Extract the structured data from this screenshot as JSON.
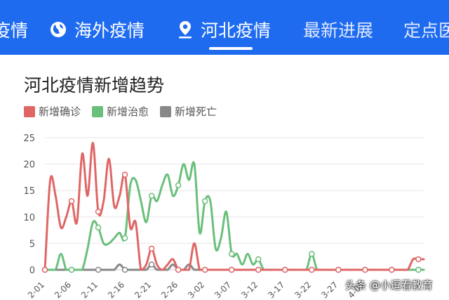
{
  "nav": {
    "tabs": [
      {
        "label": "疫情",
        "icon": "",
        "active": false
      },
      {
        "label": "海外疫情",
        "icon": "globe-icon",
        "active": false
      },
      {
        "label": "河北疫情",
        "icon": "location-pin-icon",
        "active": true
      },
      {
        "label": "最新进展",
        "icon": "",
        "active": false
      },
      {
        "label": "定点医",
        "icon": "",
        "active": false
      }
    ]
  },
  "colors": {
    "nav_bg": "#1e6bf0",
    "confirmed": "#e06666",
    "recovered": "#6abf7b",
    "deaths": "#888888"
  },
  "chart_data": {
    "type": "line",
    "title": "河北疫情新增趋势",
    "xlabel": "",
    "ylabel": "",
    "ylim": [
      0,
      25
    ],
    "yticks": [
      0,
      5,
      10,
      15,
      20,
      25
    ],
    "grid": true,
    "legend_position": "top-left",
    "x_tick_labels": [
      "2-01",
      "2-06",
      "2-11",
      "2-16",
      "2-21",
      "2-26",
      "3-02",
      "3-07",
      "3-12",
      "3-17",
      "3-22",
      "3-27",
      "4-01"
    ],
    "series": [
      {
        "name": "新增确诊",
        "color": "#e06666",
        "values": [
          0,
          17,
          14,
          8,
          10,
          13,
          9,
          22,
          14,
          24,
          11,
          13,
          21,
          12,
          14,
          18,
          8,
          9,
          0,
          1,
          4,
          1,
          0,
          1,
          2,
          0,
          0,
          0,
          5,
          0,
          0,
          0,
          0,
          0,
          0,
          0,
          0,
          0,
          0,
          0,
          0,
          0,
          0,
          0,
          0,
          0,
          0,
          0,
          0,
          0,
          0,
          0,
          0,
          0,
          0,
          0,
          0,
          0,
          0,
          0,
          0,
          0,
          0,
          0,
          0,
          0,
          0,
          0,
          0,
          2,
          2,
          2
        ]
      },
      {
        "name": "新增治愈",
        "color": "#6abf7b",
        "values": [
          0,
          0,
          0,
          3,
          0,
          0,
          0,
          0,
          4,
          9,
          8,
          5,
          5,
          6,
          7,
          6,
          16,
          17,
          13,
          9,
          14,
          13,
          16,
          18,
          14,
          16,
          20,
          17,
          20,
          7,
          13,
          13,
          4,
          6,
          11,
          3,
          3,
          1,
          3,
          1,
          2,
          0,
          0,
          0,
          0,
          0,
          0,
          0,
          0,
          0,
          3,
          0,
          0,
          0,
          0,
          0,
          0,
          0,
          0,
          0,
          0,
          0,
          0,
          0,
          0,
          0,
          0,
          0,
          0,
          0,
          0,
          0
        ]
      },
      {
        "name": "新增死亡",
        "color": "#888888",
        "values": [
          0,
          0,
          0,
          0,
          0,
          0,
          0,
          0,
          0,
          0,
          0,
          0,
          0,
          0,
          1,
          0,
          0,
          0,
          0,
          0,
          1,
          0,
          0,
          0,
          1,
          0,
          0,
          1,
          0,
          0,
          0,
          0,
          0,
          0,
          0,
          0,
          0,
          0,
          0,
          0,
          0,
          0,
          0,
          0,
          0,
          0,
          0,
          0,
          0,
          0,
          0,
          0,
          0,
          0,
          0,
          0,
          0,
          0,
          0,
          0,
          0,
          0,
          0,
          0,
          0,
          0,
          0,
          0,
          0,
          0,
          0,
          0
        ]
      }
    ]
  },
  "watermark": {
    "text": "头条 @小逗看教育"
  }
}
